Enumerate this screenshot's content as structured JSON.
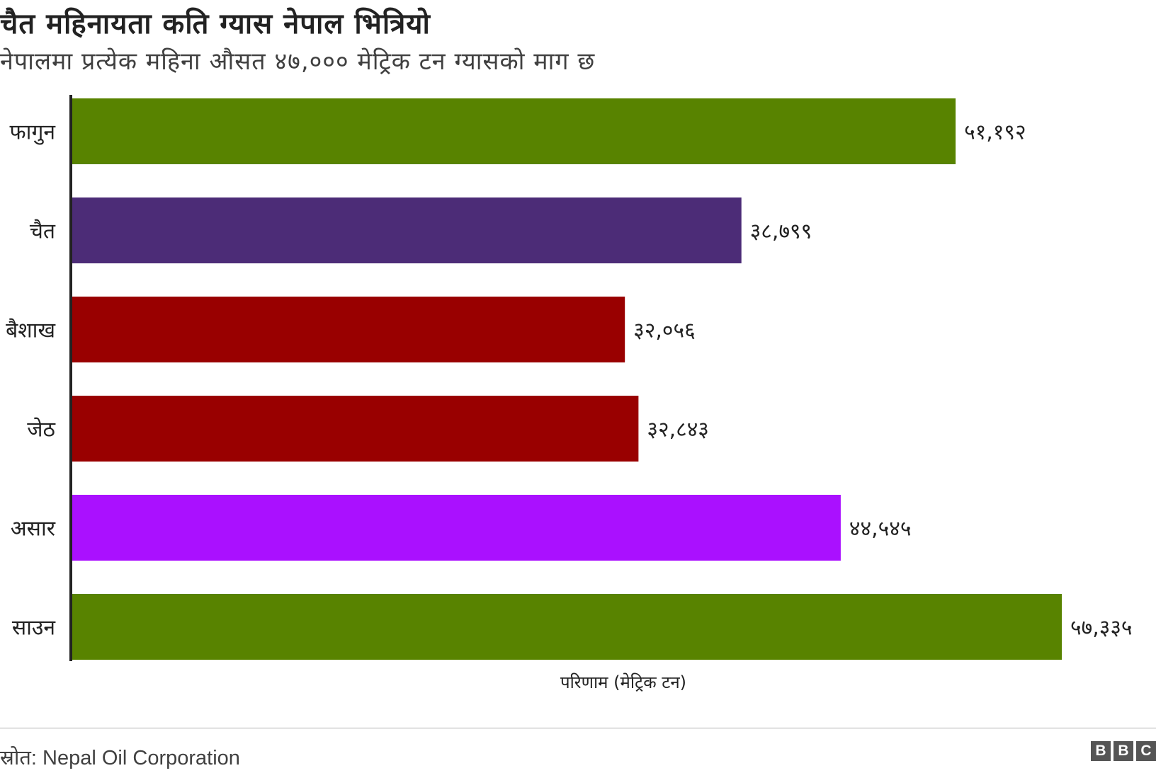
{
  "header": {
    "title": "चैत महिनायता कति ग्यास नेपाल भित्रियो",
    "subtitle": "नेपालमा प्रत्येक महिना औसत ४७,००० मेट्रिक टन ग्यासको माग छ"
  },
  "chart_data": {
    "type": "bar",
    "orientation": "horizontal",
    "categories": [
      "फागुन",
      "चैत",
      "बैशाख",
      "जेठ",
      "असार",
      "साउन"
    ],
    "values": [
      51192,
      38799,
      32056,
      32843,
      44545,
      57335
    ],
    "value_labels": [
      "५१,१९२",
      "३८,७९९",
      "३२,०५६",
      "३२,८४३",
      "४४,५४५",
      "५७,३३५"
    ],
    "colors": [
      "#588300",
      "#4c2c77",
      "#990000",
      "#990000",
      "#aa10ff",
      "#588300"
    ],
    "xlabel": "परिणाम (मेट्रिक टन)",
    "xlim": [
      0,
      57335
    ],
    "grid": false,
    "legend": "none"
  },
  "footer": {
    "source": "स्रोत: Nepal Oil Corporation",
    "logo_letters": [
      "B",
      "B",
      "C"
    ]
  }
}
